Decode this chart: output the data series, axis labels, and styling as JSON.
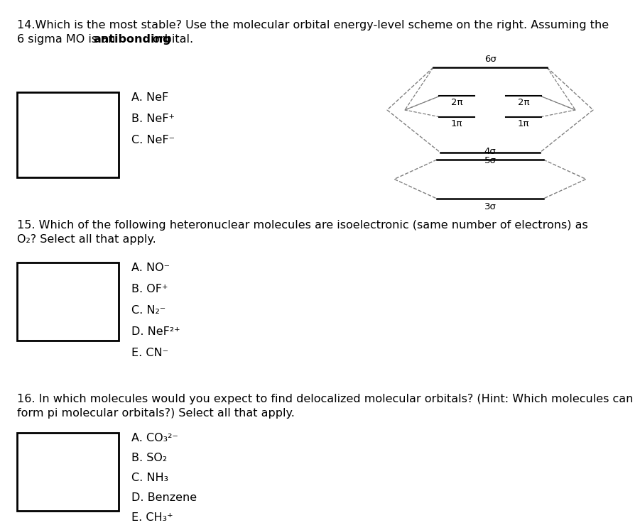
{
  "bg_color": "#ffffff",
  "text_color": "#000000",
  "q14_line1": "14.Which is the most stable? Use the molecular orbital energy-level scheme on the right. Assuming the",
  "q14_line2_pre": "6 sigma MO is an ",
  "q14_line2_bold": "antibonding",
  "q14_line2_post": " orbital.",
  "q14_options": [
    "A. NeF",
    "B. NeF⁺",
    "C. NeF⁻"
  ],
  "q15_line1": "15. Which of the following heteronuclear molecules are isoelectronic (same number of electrons) as",
  "q15_line2": "O₂? Select all that apply.",
  "q15_options": [
    "A. NO⁻",
    "B. OF⁺",
    "C. N₂⁻",
    "D. NeF²⁺",
    "E. CN⁻"
  ],
  "q16_line1": "16. In which molecules would you expect to find delocalized molecular orbitals? (Hint: Which molecules can",
  "q16_line2": "form pi molecular orbitals?) Select all that apply.",
  "q16_options": [
    "A. CO₃²⁻",
    "B. SO₂",
    "C. NH₃",
    "D. Benzene",
    "E. CH₃⁺"
  ],
  "font_size": 11.5,
  "font_size_mo": 9.5
}
